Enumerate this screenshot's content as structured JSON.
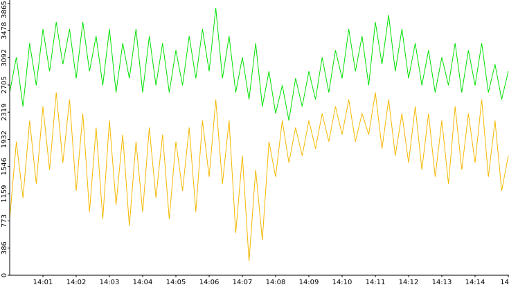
{
  "chart_data": {
    "type": "line",
    "x": [
      0,
      0.2,
      0.4,
      0.6,
      0.8,
      1,
      1.2,
      1.4,
      1.6,
      1.8,
      2,
      2.2,
      2.4,
      2.6,
      2.8,
      3,
      3.2,
      3.4,
      3.6,
      3.8,
      4,
      4.2,
      4.4,
      4.6,
      4.8,
      5,
      5.2,
      5.4,
      5.6,
      5.8,
      6,
      6.2,
      6.4,
      6.6,
      6.8,
      7,
      7.2,
      7.4,
      7.6,
      7.8,
      8,
      8.2,
      8.4,
      8.6,
      8.8,
      9,
      9.2,
      9.4,
      9.6,
      9.8,
      10,
      10.2,
      10.4,
      10.6,
      10.8,
      11,
      11.2,
      11.4,
      11.6,
      11.8,
      12,
      12.2,
      12.4,
      12.6,
      12.8,
      13,
      13.2,
      13.4,
      13.6,
      13.8,
      14,
      14.2,
      14.4,
      14.6,
      14.8,
      15
    ],
    "series": [
      {
        "color": "#00e000",
        "values": [
          2600,
          3100,
          2400,
          3300,
          2700,
          3500,
          2900,
          3600,
          3000,
          3500,
          2800,
          3600,
          2900,
          3400,
          2700,
          3500,
          2600,
          3300,
          2800,
          3500,
          2600,
          3400,
          2700,
          3300,
          2600,
          3200,
          2700,
          3400,
          2800,
          3500,
          2900,
          3800,
          2800,
          3400,
          2600,
          3100,
          2500,
          3300,
          2400,
          2900,
          2300,
          2700,
          2200,
          2800,
          2400,
          2900,
          2500,
          3100,
          2600,
          3200,
          2800,
          3500,
          2900,
          3400,
          2700,
          3600,
          3000,
          3700,
          2900,
          3500,
          2800,
          3300,
          2700,
          3200,
          2600,
          3100,
          2700,
          3300,
          2600,
          3200,
          2700,
          3300,
          2600,
          3000,
          2500,
          2900
        ]
      },
      {
        "color": "#f5b800",
        "values": [
          800,
          1900,
          1100,
          2200,
          1300,
          2400,
          1500,
          2600,
          1600,
          2500,
          1200,
          2300,
          900,
          2100,
          800,
          2200,
          1000,
          2000,
          700,
          1900,
          900,
          2100,
          1100,
          2000,
          800,
          1900,
          1200,
          2100,
          900,
          2200,
          1400,
          2500,
          1300,
          2200,
          600,
          1700,
          200,
          1500,
          500,
          1900,
          1400,
          2200,
          1600,
          2100,
          1700,
          2200,
          1800,
          2300,
          1900,
          2400,
          2000,
          2500,
          1900,
          2300,
          2000,
          2600,
          1800,
          2500,
          1700,
          2300,
          1600,
          2400,
          1500,
          2300,
          1400,
          2200,
          1300,
          2400,
          1500,
          2300,
          1600,
          2500,
          1400,
          2200,
          1200,
          1700
        ]
      }
    ],
    "xlim": [
      0,
      15
    ],
    "xticks": [
      {
        "value": 1,
        "label": "14:01"
      },
      {
        "value": 2,
        "label": "14:02"
      },
      {
        "value": 3,
        "label": "14:03"
      },
      {
        "value": 4,
        "label": "14:04"
      },
      {
        "value": 5,
        "label": "14:05"
      },
      {
        "value": 6,
        "label": "14:06"
      },
      {
        "value": 7,
        "label": "14:07"
      },
      {
        "value": 8,
        "label": "14:08"
      },
      {
        "value": 9,
        "label": "14:09"
      },
      {
        "value": 10,
        "label": "14:10"
      },
      {
        "value": 11,
        "label": "14:11"
      },
      {
        "value": 12,
        "label": "14:12"
      },
      {
        "value": 13,
        "label": "14:13"
      },
      {
        "value": 14,
        "label": "14:14"
      },
      {
        "value": 15,
        "label": "14"
      }
    ],
    "ylim": [
      0,
      3865
    ],
    "yticks": [
      0,
      386,
      773,
      1159,
      1546,
      1932,
      2319,
      2705,
      3092,
      3478,
      3865
    ]
  }
}
